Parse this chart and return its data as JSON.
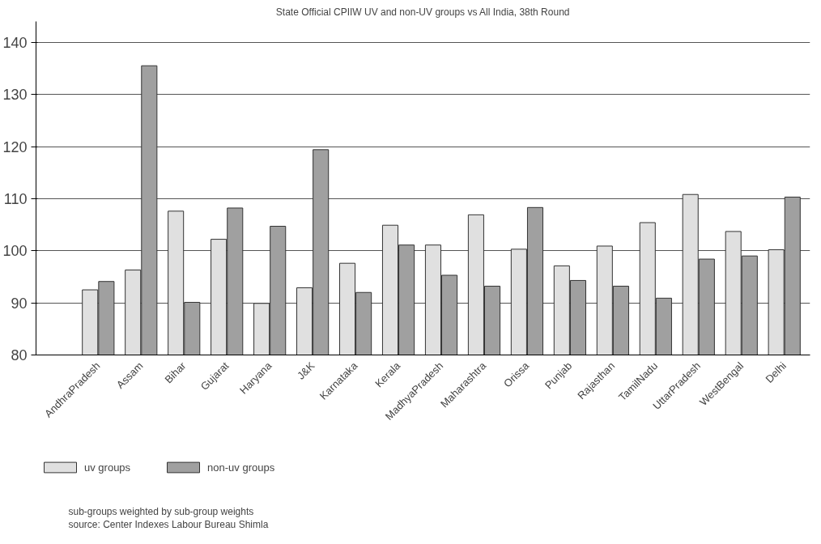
{
  "chart_data": {
    "type": "bar",
    "title": "State Official CPIIW UV and non-UV groups vs All India, 38th Round",
    "categories": [
      "AndhraPradesh",
      "Assam",
      "Bihar",
      "Gujarat",
      "Haryana",
      "J&K",
      "Karnataka",
      "Kerala",
      "MadhyaPradesh",
      "Maharashtra",
      "Orissa",
      "Punjab",
      "Rajasthan",
      "TamilNadu",
      "UttarPradesh",
      "WestBengal",
      "Delhi"
    ],
    "series": [
      {
        "name": "uv groups",
        "color": "#e0e0e0",
        "values": [
          92.5,
          96.3,
          107.6,
          102.2,
          89.9,
          92.9,
          97.6,
          104.9,
          101.1,
          106.9,
          100.3,
          97.1,
          100.9,
          105.4,
          110.8,
          103.7,
          100.2
        ]
      },
      {
        "name": "non-uv groups",
        "color": "#a0a0a0",
        "values": [
          94.1,
          135.5,
          90.1,
          108.2,
          104.7,
          119.4,
          92.0,
          101.1,
          95.3,
          93.2,
          108.3,
          94.3,
          93.2,
          90.9,
          98.4,
          99.0,
          110.3
        ]
      }
    ],
    "ylim": [
      80,
      144
    ],
    "yticks": [
      80,
      90,
      100,
      110,
      120,
      130,
      140
    ],
    "grid": "y",
    "legend": "bottom",
    "annotations": [
      "sub-groups weighted by sub-group weights",
      "source: Center Indexes Labour Bureau Shimla"
    ]
  }
}
